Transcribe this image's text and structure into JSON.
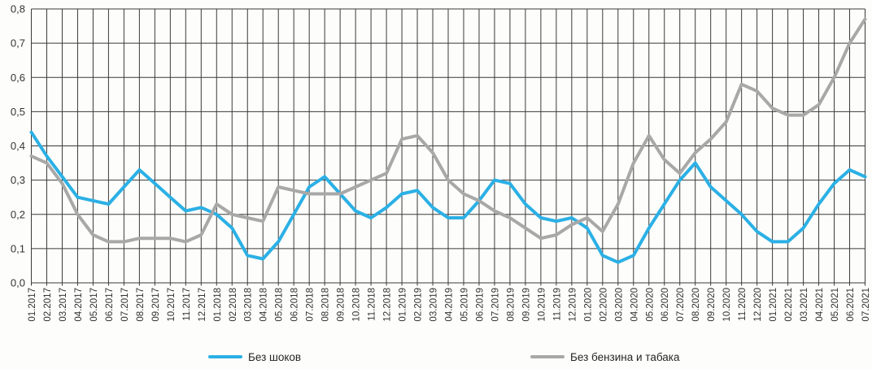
{
  "colors": {
    "series1": "#2bb0e5",
    "series2": "#a8a8a8",
    "grid": "#3a3a3a",
    "text": "#333333",
    "background": "#fdfdfb"
  },
  "legend": {
    "series1_label": "Без шоков",
    "series2_label": "Без бензина и табака"
  },
  "chart_data": {
    "type": "line",
    "title": "",
    "xlabel": "",
    "ylabel": "",
    "ylim": [
      0.0,
      0.8
    ],
    "y_tick_step": 0.1,
    "y_tick_labels": [
      "0,0",
      "0,1",
      "0,2",
      "0,3",
      "0,4",
      "0,5",
      "0,6",
      "0,7",
      "0,8"
    ],
    "grid": "both",
    "legend_position": "bottom",
    "categories": [
      "01.2017",
      "02.2017",
      "03.2017",
      "04.2017",
      "05.2017",
      "06.2017",
      "07.2017",
      "08.2017",
      "09.2017",
      "10.2017",
      "11.2017",
      "12.2017",
      "01.2018",
      "02.2018",
      "03.2018",
      "04.2018",
      "05.2018",
      "06.2018",
      "07.2018",
      "08.2018",
      "09.2018",
      "10.2018",
      "11.2018",
      "12.2018",
      "01.2019",
      "02.2019",
      "03.2019",
      "04.2019",
      "05.2019",
      "06.2019",
      "07.2019",
      "08.2019",
      "09.2019",
      "10.2019",
      "11.2019",
      "12.2019",
      "01.2020",
      "02.2020",
      "03.2020",
      "04.2020",
      "05.2020",
      "06.2020",
      "07.2020",
      "08.2020",
      "09.2020",
      "10.2020",
      "11.2020",
      "12.2020",
      "01.2021",
      "02.2021",
      "03.2021",
      "04.2021",
      "05.2021",
      "06.2021",
      "07.2021"
    ],
    "series": [
      {
        "name": "Без шоков",
        "color": "#2bb0e5",
        "values": [
          0.44,
          0.37,
          0.31,
          0.25,
          0.24,
          0.23,
          0.28,
          0.33,
          0.29,
          0.25,
          0.21,
          0.22,
          0.2,
          0.16,
          0.08,
          0.07,
          0.12,
          0.2,
          0.28,
          0.31,
          0.26,
          0.21,
          0.19,
          0.22,
          0.26,
          0.27,
          0.22,
          0.19,
          0.19,
          0.24,
          0.3,
          0.29,
          0.23,
          0.19,
          0.18,
          0.19,
          0.16,
          0.08,
          0.06,
          0.08,
          0.16,
          0.23,
          0.3,
          0.35,
          0.28,
          0.24,
          0.2,
          0.15,
          0.12,
          0.12,
          0.16,
          0.23,
          0.29,
          0.33,
          0.31
        ]
      },
      {
        "name": "Без бензина и табака",
        "color": "#a8a8a8",
        "values": [
          0.37,
          0.35,
          0.29,
          0.2,
          0.14,
          0.12,
          0.12,
          0.13,
          0.13,
          0.13,
          0.12,
          0.14,
          0.23,
          0.2,
          0.19,
          0.18,
          0.28,
          0.27,
          0.26,
          0.26,
          0.26,
          0.28,
          0.3,
          0.32,
          0.42,
          0.43,
          0.38,
          0.3,
          0.26,
          0.24,
          0.21,
          0.19,
          0.16,
          0.13,
          0.14,
          0.17,
          0.19,
          0.15,
          0.23,
          0.35,
          0.43,
          0.36,
          0.32,
          0.38,
          0.42,
          0.47,
          0.58,
          0.56,
          0.51,
          0.49,
          0.49,
          0.52,
          0.6,
          0.7,
          0.77
        ]
      }
    ]
  }
}
